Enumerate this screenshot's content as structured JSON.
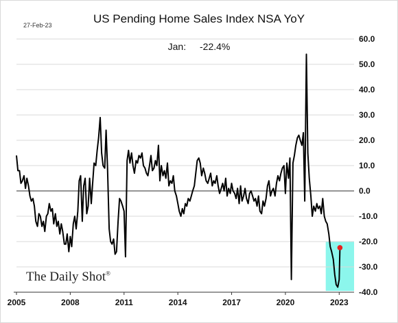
{
  "header": {
    "date_stamp": "27-Feb-23"
  },
  "branding": {
    "name": "The Daily Shot",
    "mark": "®"
  },
  "annotation": {
    "label": "Jan:",
    "value": "-22.4%"
  },
  "colors": {
    "line": "#000000",
    "highlight": "#7ff5ea",
    "marker": "#e8201e",
    "grid": "#d9d9d9",
    "zero_line": "#555555"
  },
  "chart_data": {
    "type": "line",
    "title": "US Pending Home Sales Index NSA YoY",
    "xlabel": "",
    "ylabel": "",
    "xlim": [
      2005.0,
      2023.83
    ],
    "ylim": [
      -40,
      60
    ],
    "x_ticks": [
      2005,
      2008,
      2011,
      2014,
      2017,
      2020,
      2023
    ],
    "y_ticks": [
      60,
      50,
      40,
      30,
      20,
      10,
      0,
      -10,
      -20,
      -30,
      -40
    ],
    "y_tick_labels": [
      "60.0",
      "50.0",
      "40.0",
      "30.0",
      "20.0",
      "10.0",
      "0.0",
      "-10.0",
      "-20.0",
      "-30.0",
      "-40.0"
    ],
    "y_axis_position": "right",
    "grid": "horizontal",
    "highlight_region": {
      "x": [
        2022.25,
        2023.9
      ],
      "y": [
        -39.5,
        -20
      ]
    },
    "last_point": {
      "x": 2023.04,
      "y": -22.4
    },
    "series": [
      {
        "x": [
          2005.0,
          2005.08,
          2005.17,
          2005.25,
          2005.33,
          2005.42,
          2005.5,
          2005.58,
          2005.67,
          2005.75,
          2005.83,
          2005.92,
          2006.0,
          2006.08,
          2006.17,
          2006.25,
          2006.33,
          2006.42,
          2006.5,
          2006.58,
          2006.67,
          2006.75,
          2006.83,
          2006.92,
          2007.0,
          2007.08,
          2007.17,
          2007.25,
          2007.33,
          2007.42,
          2007.5,
          2007.58,
          2007.67,
          2007.75,
          2007.83,
          2007.92,
          2008.0,
          2008.08,
          2008.17,
          2008.25,
          2008.33,
          2008.42,
          2008.5,
          2008.58,
          2008.67,
          2008.75,
          2008.83,
          2008.92,
          2009.0,
          2009.08,
          2009.17,
          2009.25,
          2009.33,
          2009.42,
          2009.5,
          2009.58,
          2009.67,
          2009.75,
          2009.83,
          2009.92,
          2010.0,
          2010.08,
          2010.17,
          2010.25,
          2010.33,
          2010.42,
          2010.5,
          2010.58,
          2010.67,
          2010.75,
          2010.83,
          2010.92,
          2011.0,
          2011.08,
          2011.17,
          2011.25,
          2011.33,
          2011.42,
          2011.5,
          2011.58,
          2011.67,
          2011.75,
          2011.83,
          2011.92,
          2012.0,
          2012.08,
          2012.17,
          2012.25,
          2012.33,
          2012.42,
          2012.5,
          2012.58,
          2012.67,
          2012.75,
          2012.83,
          2012.92,
          2013.0,
          2013.08,
          2013.17,
          2013.25,
          2013.33,
          2013.42,
          2013.5,
          2013.58,
          2013.67,
          2013.75,
          2013.83,
          2013.92,
          2014.0,
          2014.08,
          2014.17,
          2014.25,
          2014.33,
          2014.42,
          2014.5,
          2014.58,
          2014.67,
          2014.75,
          2014.83,
          2014.92,
          2015.0,
          2015.08,
          2015.17,
          2015.25,
          2015.33,
          2015.42,
          2015.5,
          2015.58,
          2015.67,
          2015.75,
          2015.83,
          2015.92,
          2016.0,
          2016.08,
          2016.17,
          2016.25,
          2016.33,
          2016.42,
          2016.5,
          2016.58,
          2016.67,
          2016.75,
          2016.83,
          2016.92,
          2017.0,
          2017.08,
          2017.17,
          2017.25,
          2017.33,
          2017.42,
          2017.5,
          2017.58,
          2017.67,
          2017.75,
          2017.83,
          2017.92,
          2018.0,
          2018.08,
          2018.17,
          2018.25,
          2018.33,
          2018.42,
          2018.5,
          2018.58,
          2018.67,
          2018.75,
          2018.83,
          2018.92,
          2019.0,
          2019.08,
          2019.17,
          2019.25,
          2019.33,
          2019.42,
          2019.5,
          2019.58,
          2019.67,
          2019.75,
          2019.83,
          2019.92,
          2020.0,
          2020.08,
          2020.17,
          2020.25,
          2020.33,
          2020.42,
          2020.5,
          2020.58,
          2020.67,
          2020.75,
          2020.83,
          2020.92,
          2021.0,
          2021.08,
          2021.17,
          2021.25,
          2021.33,
          2021.42,
          2021.5,
          2021.58,
          2021.67,
          2021.75,
          2021.83,
          2021.92,
          2022.0,
          2022.08,
          2022.17,
          2022.25,
          2022.33,
          2022.42,
          2022.5,
          2022.58,
          2022.67,
          2022.75,
          2022.83,
          2022.92,
          2023.0,
          2023.04
        ],
        "values": [
          14,
          8,
          8,
          3,
          4,
          6,
          1,
          5,
          2,
          -2,
          -4,
          -3,
          -6,
          -12,
          -14,
          -9,
          -10,
          -14,
          -12,
          -16,
          -10,
          -9,
          -5,
          -8,
          -7,
          -13,
          -9,
          -14,
          -12,
          -17,
          -13,
          -16,
          -21,
          -21,
          -17,
          -24,
          -18,
          -22,
          -13,
          -10,
          -15,
          -8,
          4,
          6,
          -12,
          2,
          5,
          -9,
          -6,
          5,
          -5,
          3,
          11,
          10,
          16,
          21,
          29,
          15,
          10,
          9,
          24,
          9,
          -15,
          -20,
          -21,
          -19,
          -25,
          -24,
          -12,
          -3,
          -4,
          -6,
          -8,
          -26,
          12,
          16,
          11,
          15,
          10,
          7,
          12,
          11,
          14,
          13,
          15,
          10,
          9,
          7,
          6,
          10,
          14,
          8,
          9,
          12,
          10,
          18,
          4,
          10,
          6,
          8,
          5,
          11,
          2,
          4,
          3,
          6,
          0,
          -2,
          -5,
          -8,
          -10,
          -7,
          -9,
          -5,
          -6,
          -3,
          -4,
          -2,
          0,
          2,
          7,
          12,
          13,
          11,
          6,
          9,
          7,
          4,
          3,
          5,
          7,
          2,
          4,
          3,
          6,
          2,
          -1,
          1,
          3,
          0,
          5,
          -2,
          1,
          -1,
          3,
          0,
          -1,
          -3,
          1,
          -5,
          2,
          -4,
          -2,
          1,
          -3,
          -5,
          -1,
          0,
          -2,
          -4,
          -3,
          -6,
          -2,
          -8,
          -9,
          -4,
          -6,
          -3,
          2,
          4,
          -2,
          0,
          1,
          -2,
          3,
          6,
          4,
          7,
          9,
          10,
          -1,
          11,
          5,
          13,
          -35,
          11,
          14,
          18,
          21,
          22,
          20,
          18,
          23,
          -4,
          54,
          15,
          5,
          -2,
          -10,
          -6,
          -8,
          -5,
          -7,
          -6,
          -9,
          -3,
          -10,
          -12,
          -13,
          -17,
          -22,
          -24,
          -27,
          -33,
          -37,
          -38,
          -35,
          -22.4
        ]
      }
    ]
  }
}
